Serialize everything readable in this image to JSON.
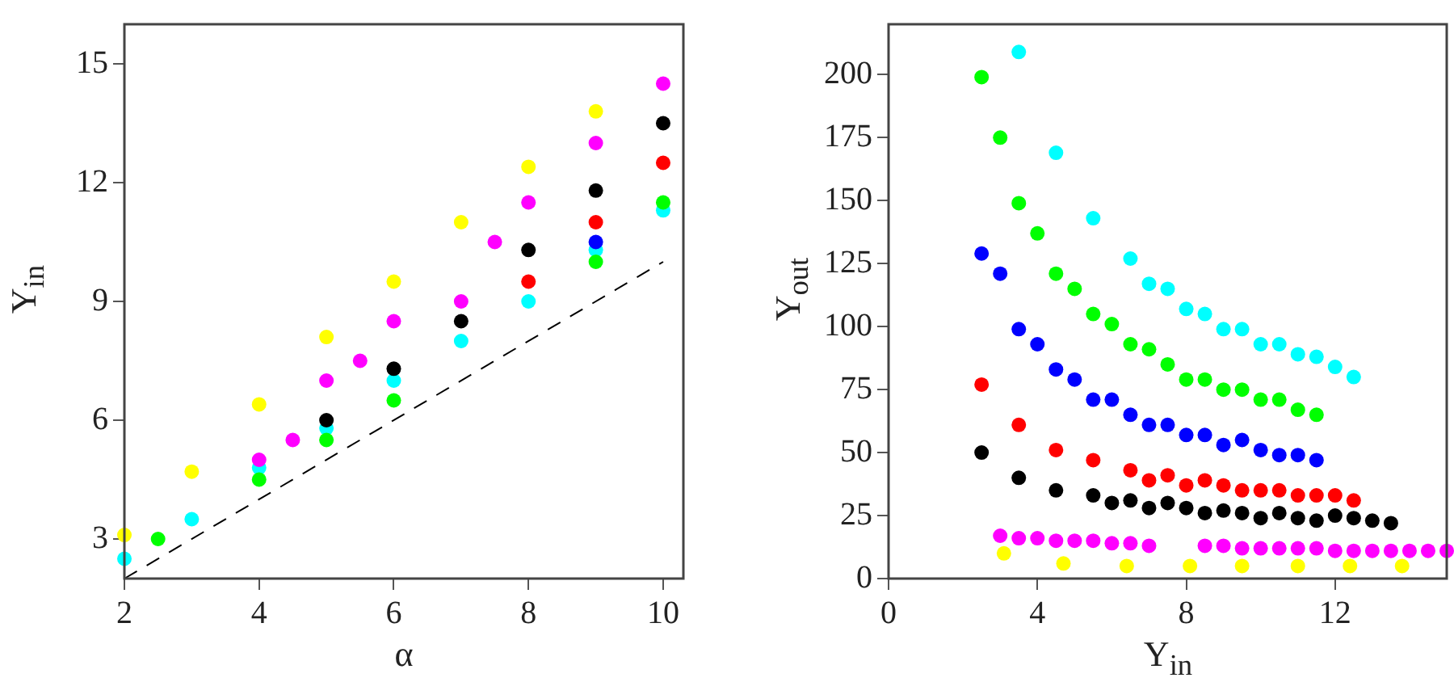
{
  "chart_data": [
    {
      "type": "scatter",
      "xlabel": "α",
      "ylabel": "Υ$_{in}$",
      "xlim": [
        2,
        10.3
      ],
      "ylim": [
        2,
        16
      ],
      "xticks": [
        2,
        4,
        6,
        8,
        10
      ],
      "yticks": [
        3,
        6,
        9,
        12,
        15
      ],
      "marker": "circle",
      "series": [
        {
          "type": "line",
          "color": "#000000",
          "marker": "none",
          "line_style": "dashed",
          "x": [
            2,
            10
          ],
          "values": [
            2,
            10
          ]
        },
        {
          "color": "#ffff00",
          "x": [
            2,
            3,
            4,
            5,
            6,
            7,
            8,
            9
          ],
          "values": [
            3.1,
            4.7,
            6.4,
            8.1,
            9.5,
            11.0,
            12.4,
            13.8
          ]
        },
        {
          "color": "#ff00ff",
          "x": [
            4,
            4.5,
            5,
            5.5,
            6,
            7,
            7.5,
            8,
            9,
            10
          ],
          "values": [
            5.0,
            5.5,
            7.0,
            7.5,
            8.5,
            9.0,
            10.5,
            11.5,
            13.0,
            14.5
          ]
        },
        {
          "color": "#000000",
          "x": [
            5,
            6,
            7,
            8,
            9,
            10
          ],
          "values": [
            6.0,
            7.3,
            8.5,
            10.3,
            11.8,
            13.5
          ]
        },
        {
          "color": "#ff0000",
          "x": [
            8,
            9,
            10
          ],
          "values": [
            9.5,
            11.0,
            12.5
          ]
        },
        {
          "color": "#0000ff",
          "x": [
            9
          ],
          "values": [
            10.5
          ]
        },
        {
          "color": "#00ff00",
          "x": [
            2.5,
            4,
            5,
            6,
            9,
            10
          ],
          "values": [
            3.0,
            4.5,
            5.5,
            6.5,
            10.0,
            11.5
          ]
        },
        {
          "color": "#00ffff",
          "x": [
            2,
            3,
            4,
            5,
            6,
            7,
            8,
            9,
            10
          ],
          "values": [
            2.5,
            3.5,
            4.8,
            5.8,
            7.0,
            8.0,
            9.0,
            10.3,
            11.3
          ]
        }
      ]
    },
    {
      "type": "scatter",
      "xlabel": "Υ$_{in}$",
      "ylabel": "Υ$_{out}$",
      "xlim": [
        0,
        15
      ],
      "ylim": [
        0,
        220
      ],
      "xticks": [
        0,
        4,
        8,
        12
      ],
      "yticks": [
        0,
        25,
        50,
        75,
        100,
        125,
        150,
        175,
        200
      ],
      "marker": "circle",
      "series": [
        {
          "color": "#00ffff",
          "x": [
            3.5,
            4.5,
            5.5,
            6.5,
            7,
            7.5,
            8,
            8.5,
            9,
            9.5,
            10,
            10.5,
            11,
            11.5,
            12,
            12.5
          ],
          "values": [
            209,
            169,
            143,
            127,
            117,
            115,
            107,
            105,
            99,
            99,
            93,
            93,
            89,
            88,
            84,
            80
          ]
        },
        {
          "color": "#00ff00",
          "x": [
            2.5,
            3,
            3.5,
            4,
            4.5,
            5,
            5.5,
            6,
            6.5,
            7,
            7.5,
            8,
            8.5,
            9,
            9.5,
            10,
            10.5,
            11,
            11.5
          ],
          "values": [
            199,
            175,
            149,
            137,
            121,
            115,
            105,
            101,
            93,
            91,
            85,
            79,
            79,
            75,
            75,
            71,
            71,
            67,
            65
          ]
        },
        {
          "color": "#0000ff",
          "x": [
            2.5,
            3,
            3.5,
            4,
            4.5,
            5,
            5.5,
            6,
            6.5,
            7,
            7.5,
            8,
            8.5,
            9,
            9.5,
            10,
            10.5,
            11,
            11.5
          ],
          "values": [
            129,
            121,
            99,
            93,
            83,
            79,
            71,
            71,
            65,
            61,
            61,
            57,
            57,
            53,
            55,
            51,
            49,
            49,
            47
          ]
        },
        {
          "color": "#ff0000",
          "x": [
            2.5,
            3.5,
            4.5,
            5.5,
            6.5,
            7,
            7.5,
            8,
            8.5,
            9,
            9.5,
            10,
            10.5,
            11,
            11.5,
            12,
            12.5
          ],
          "values": [
            77,
            61,
            51,
            47,
            43,
            39,
            41,
            37,
            39,
            37,
            35,
            35,
            35,
            33,
            33,
            33,
            31
          ]
        },
        {
          "color": "#000000",
          "x": [
            2.5,
            3.5,
            4.5,
            5.5,
            6,
            6.5,
            7,
            7.5,
            8,
            8.5,
            9,
            9.5,
            10,
            10.5,
            11,
            11.5,
            12,
            12.5,
            13,
            13.5
          ],
          "values": [
            50,
            40,
            35,
            33,
            30,
            31,
            28,
            30,
            28,
            26,
            27,
            26,
            24,
            26,
            24,
            23,
            25,
            24,
            23,
            22
          ]
        },
        {
          "color": "#ff00ff",
          "x": [
            3,
            3.5,
            4,
            4.5,
            5,
            5.5,
            6,
            6.5,
            7,
            8.5,
            9,
            9.5,
            10,
            10.5,
            11,
            11.5,
            12,
            12.5,
            13,
            13.5,
            14,
            14.5,
            15
          ],
          "values": [
            17,
            16,
            16,
            15,
            15,
            15,
            14,
            14,
            13,
            13,
            13,
            12,
            12,
            12,
            12,
            12,
            11,
            11,
            11,
            11,
            11,
            11,
            11
          ]
        },
        {
          "color": "#ffff00",
          "x": [
            3.1,
            4.7,
            6.4,
            8.1,
            9.5,
            11,
            12.4,
            13.8
          ],
          "values": [
            10,
            6,
            5,
            5,
            5,
            5,
            5,
            5
          ]
        }
      ]
    }
  ]
}
